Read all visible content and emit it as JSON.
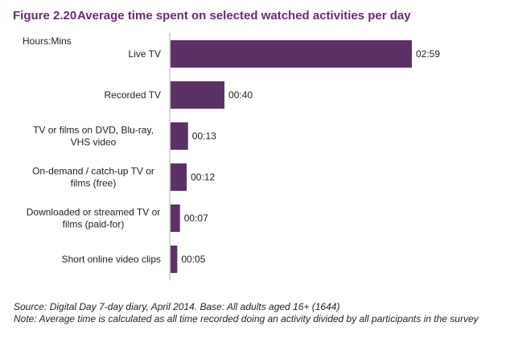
{
  "chart_data": {
    "type": "bar",
    "orientation": "horizontal",
    "figure_number": "Figure 2.20",
    "title": "Average time spent on selected watched activities per day",
    "unit_label": "Hours:Mins",
    "categories": [
      [
        "Live TV"
      ],
      [
        "Recorded TV"
      ],
      [
        "TV or films  on DVD, Blu-ray,",
        "VHS video"
      ],
      [
        "On-demand / catch-up TV or",
        "films (free)"
      ],
      [
        "Downloaded or streamed TV or",
        "films (paid-for)"
      ],
      [
        "Short online video clips"
      ]
    ],
    "values_minutes": [
      179,
      40,
      13,
      12,
      7,
      5
    ],
    "value_labels": [
      "02:59",
      "00:40",
      "00:13",
      "00:12",
      "00:07",
      "00:05"
    ],
    "bar_color": "#5c3266",
    "grid": false
  },
  "footer": {
    "source": "Source: Digital Day 7-day diary, April 2014. Base: All adults aged 16+ (1644)",
    "note": "Note: Average time is calculated as all time recorded doing an activity divided by all participants in the survey"
  }
}
